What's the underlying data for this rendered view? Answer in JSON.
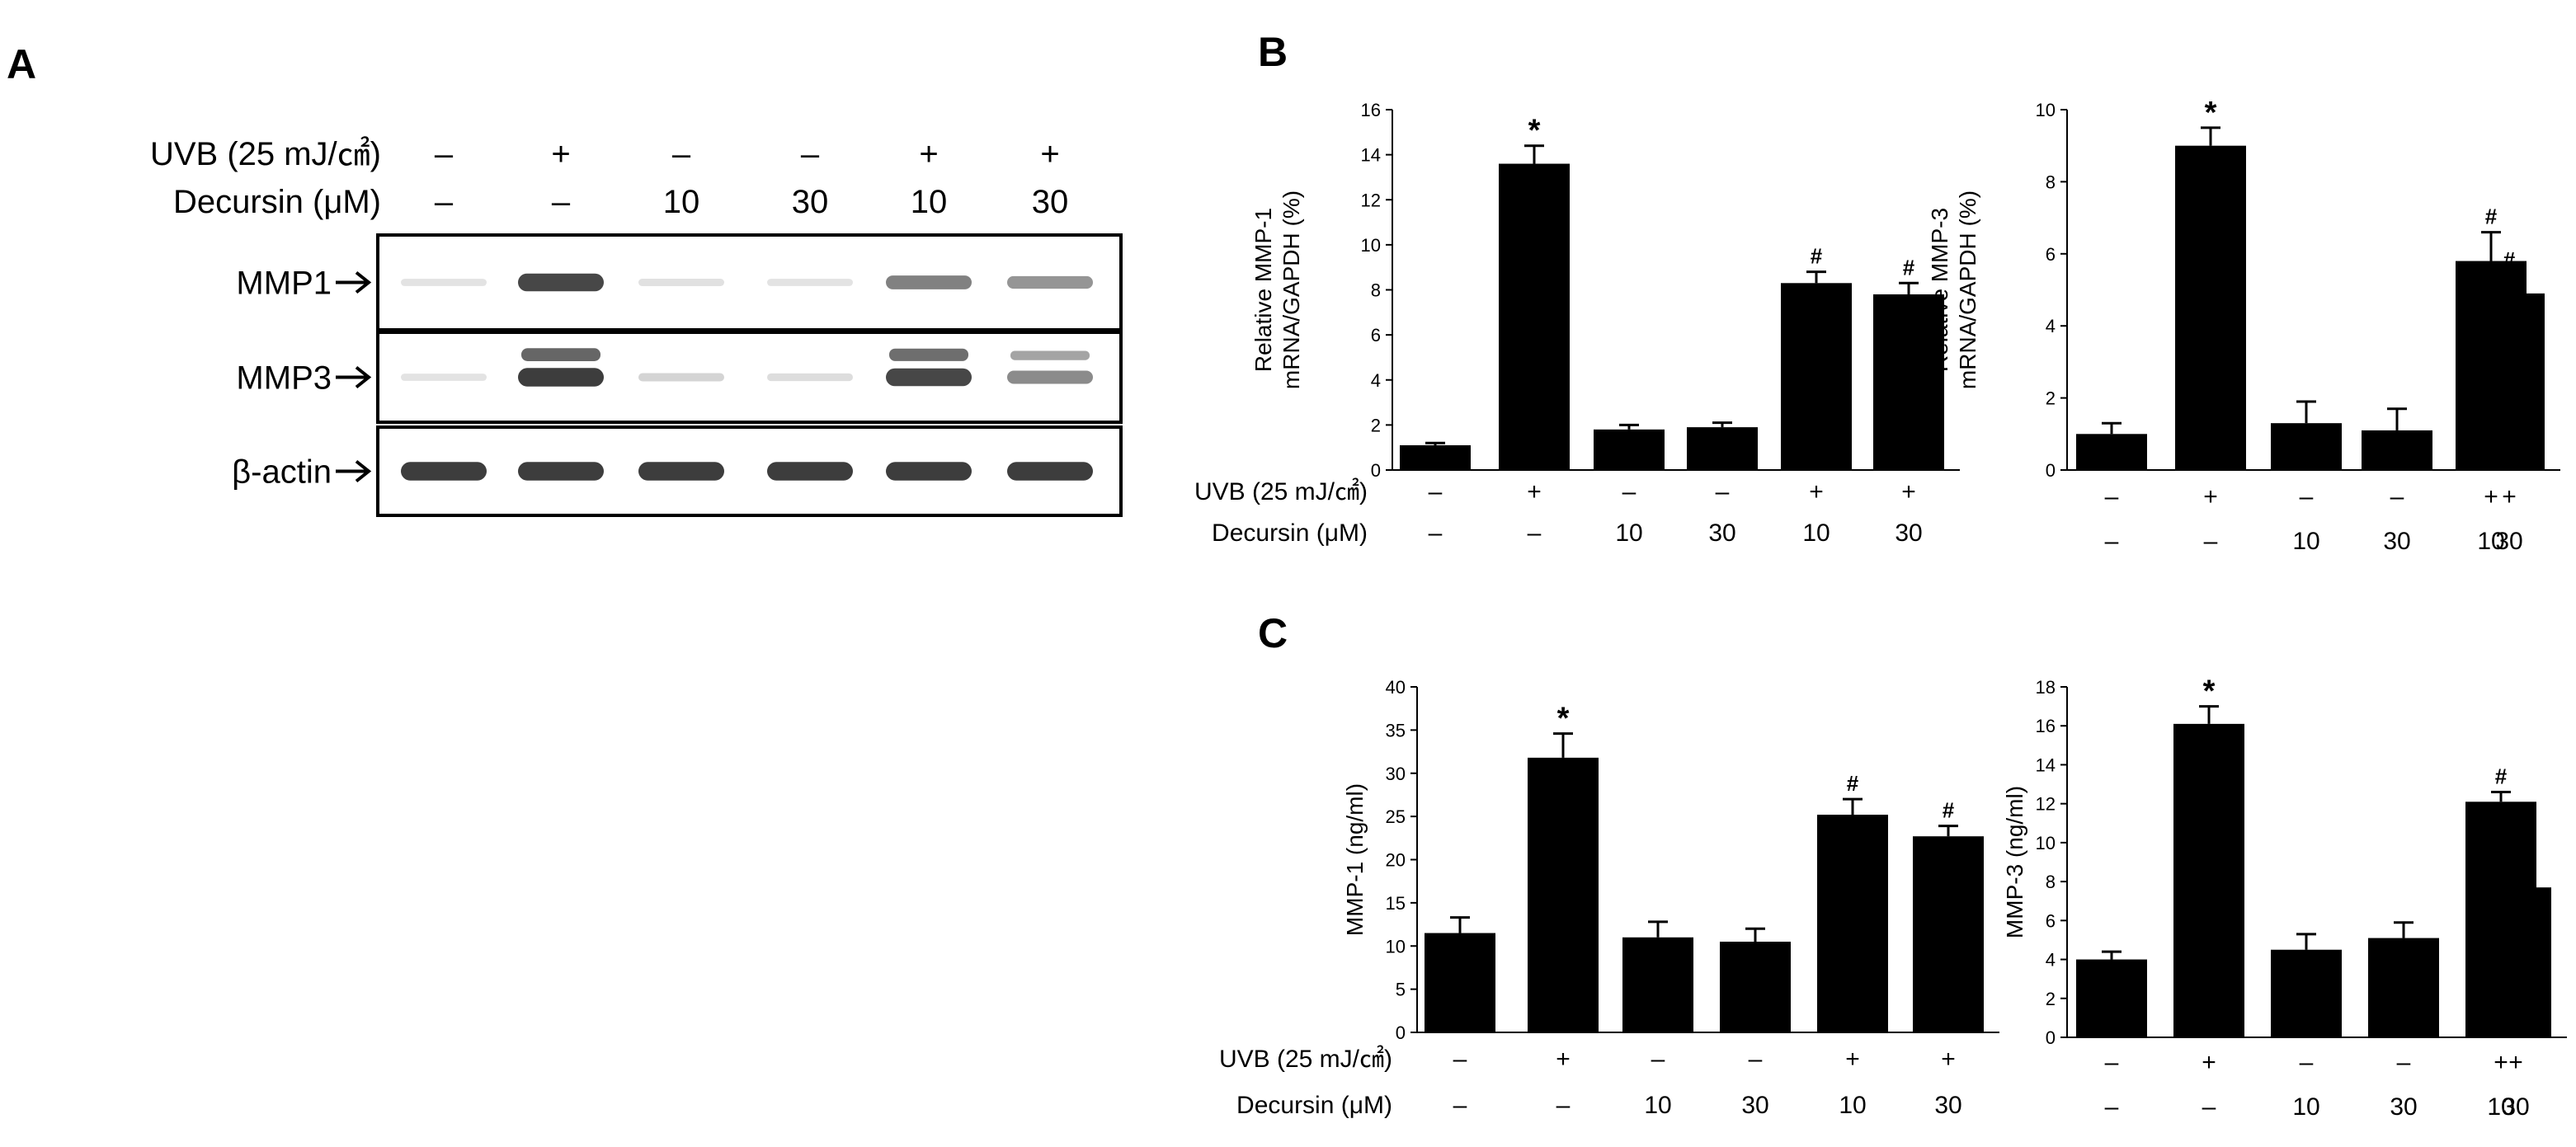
{
  "panels": {
    "a": "A",
    "b": "B",
    "c": "C"
  },
  "blot": {
    "treat_rows": [
      {
        "label": "UVB (25 mJ/㎠)",
        "values": [
          "–",
          "+",
          "–",
          "–",
          "+",
          "+"
        ]
      },
      {
        "label": "Decursin (μM)",
        "values": [
          "–",
          "–",
          "10",
          "30",
          "10",
          "30"
        ]
      }
    ],
    "bands": [
      {
        "label": "MMP1",
        "intensity": [
          0.05,
          0.85,
          0.06,
          0.05,
          0.55,
          0.45
        ]
      },
      {
        "label": "MMP3",
        "intensity": [
          0.05,
          0.9,
          0.12,
          0.08,
          0.85,
          0.5
        ]
      },
      {
        "label": "β-actin",
        "intensity": [
          0.9,
          0.9,
          0.9,
          0.9,
          0.9,
          0.9
        ]
      }
    ]
  },
  "treat_rows": [
    {
      "label": "UVB (25 mJ/㎠)",
      "values": [
        "–",
        "+",
        "–",
        "–",
        "+",
        "+"
      ]
    },
    {
      "label": "Decursin (μM)",
      "values": [
        "–",
        "–",
        "10",
        "30",
        "10",
        "30"
      ]
    }
  ],
  "chart_data": [
    {
      "type": "bar",
      "panel": "B",
      "categories": [
        "1",
        "2",
        "3",
        "4",
        "5",
        "6"
      ],
      "values": [
        1.1,
        13.6,
        1.8,
        1.9,
        8.3,
        7.8
      ],
      "errors": [
        0.1,
        0.8,
        0.2,
        0.2,
        0.5,
        0.5
      ],
      "annotations": [
        "",
        "*",
        "",
        "",
        "#",
        "#"
      ],
      "ylabel_lines": [
        "Relative MMP-1",
        "mRNA/GAPDH (%)"
      ],
      "ylim": [
        0,
        16
      ],
      "yticks": [
        0,
        2,
        4,
        6,
        8,
        10,
        12,
        14,
        16
      ],
      "show_row_labels": true
    },
    {
      "type": "bar",
      "panel": "B",
      "categories": [
        "1",
        "2",
        "3",
        "4",
        "5",
        "6"
      ],
      "values": [
        1.0,
        9.0,
        1.3,
        1.1,
        5.8,
        4.9
      ],
      "errors": [
        0.3,
        0.5,
        0.6,
        0.6,
        0.8,
        0.5
      ],
      "annotations": [
        "",
        "*",
        "",
        "",
        "#",
        "#"
      ],
      "ylabel_lines": [
        "Relative MMP-3",
        "mRNA/GAPDH (%)"
      ],
      "ylim": [
        0,
        10
      ],
      "yticks": [
        0,
        2,
        4,
        6,
        8,
        10
      ],
      "show_row_labels": false
    },
    {
      "type": "bar",
      "panel": "C",
      "categories": [
        "1",
        "2",
        "3",
        "4",
        "5",
        "6"
      ],
      "values": [
        11.5,
        31.8,
        11.0,
        10.5,
        25.2,
        22.7
      ],
      "errors": [
        1.8,
        2.8,
        1.8,
        1.5,
        1.8,
        1.2
      ],
      "annotations": [
        "",
        "*",
        "",
        "",
        "#",
        "#"
      ],
      "ylabel_lines": [
        "MMP-1 (ng/ml)"
      ],
      "ylim": [
        0,
        40
      ],
      "yticks": [
        0,
        5,
        10,
        15,
        20,
        25,
        30,
        35,
        40
      ],
      "show_row_labels": true
    },
    {
      "type": "bar",
      "panel": "C",
      "categories": [
        "1",
        "2",
        "3",
        "4",
        "5",
        "6"
      ],
      "values": [
        4.0,
        16.1,
        4.5,
        5.1,
        12.1,
        7.7
      ],
      "errors": [
        0.4,
        0.9,
        0.8,
        0.8,
        0.5,
        0.3
      ],
      "annotations": [
        "",
        "*",
        "",
        "",
        "#",
        "#"
      ],
      "ylabel_lines": [
        "MMP-3 (ng/ml)"
      ],
      "ylim": [
        0,
        18
      ],
      "yticks": [
        0,
        2,
        4,
        6,
        8,
        10,
        12,
        14,
        16,
        18
      ],
      "show_row_labels": false
    }
  ]
}
